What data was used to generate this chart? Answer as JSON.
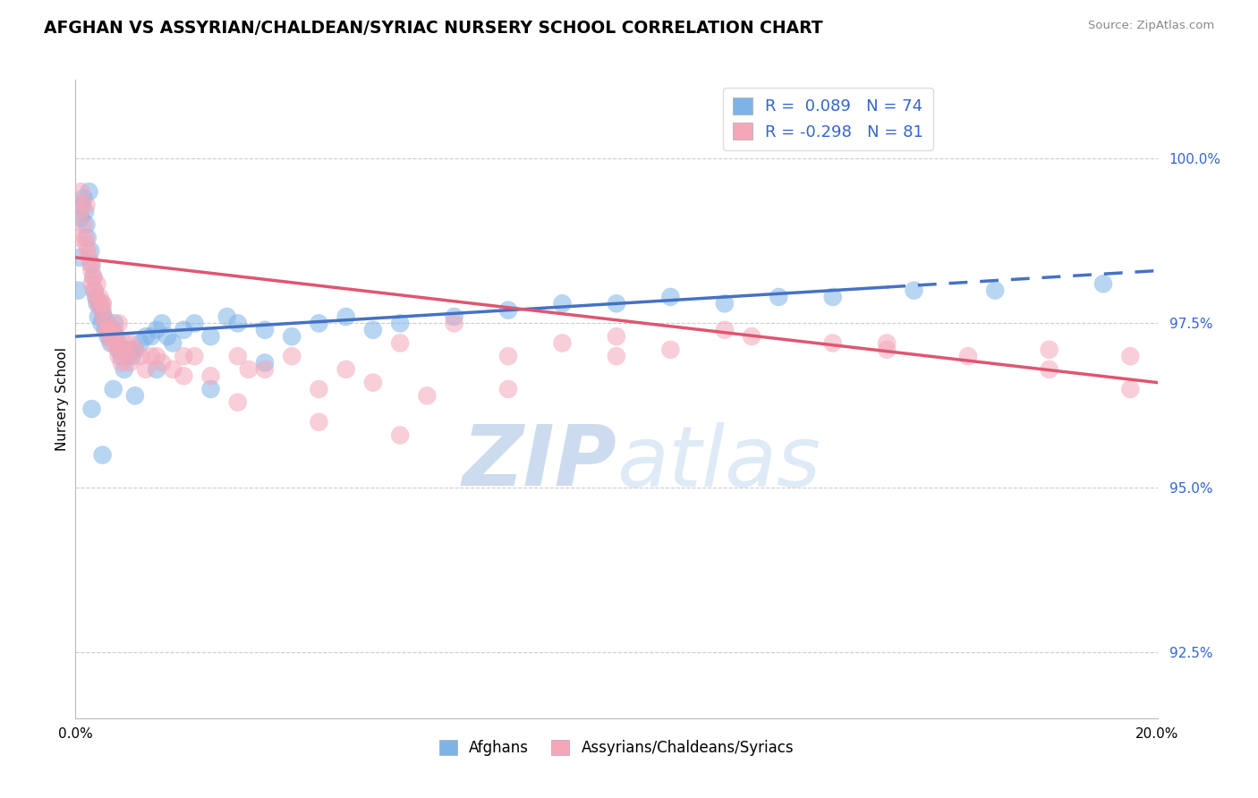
{
  "title": "AFGHAN VS ASSYRIAN/CHALDEAN/SYRIAC NURSERY SCHOOL CORRELATION CHART",
  "source": "Source: ZipAtlas.com",
  "ylabel": "Nursery School",
  "xlim": [
    0.0,
    20.0
  ],
  "ylim": [
    91.5,
    101.2
  ],
  "yticks": [
    92.5,
    95.0,
    97.5,
    100.0
  ],
  "ytick_labels": [
    "92.5%",
    "95.0%",
    "97.5%",
    "100.0%"
  ],
  "blue_color": "#7EB3E8",
  "pink_color": "#F4A7B9",
  "trend_blue": "#4472C4",
  "trend_pink": "#E05570",
  "watermark": "ZIPatlas",
  "watermark_color": "#C8D8F0",
  "legend_text_color": "#3366CC",
  "blue_x": [
    0.05,
    0.08,
    0.1,
    0.12,
    0.15,
    0.18,
    0.2,
    0.22,
    0.25,
    0.28,
    0.3,
    0.33,
    0.35,
    0.38,
    0.4,
    0.42,
    0.45,
    0.48,
    0.5,
    0.52,
    0.55,
    0.58,
    0.6,
    0.62,
    0.65,
    0.68,
    0.7,
    0.72,
    0.75,
    0.78,
    0.8,
    0.85,
    0.9,
    0.95,
    1.0,
    1.05,
    1.1,
    1.2,
    1.3,
    1.4,
    1.5,
    1.6,
    1.7,
    1.8,
    2.0,
    2.2,
    2.5,
    2.8,
    3.0,
    3.5,
    4.0,
    4.5,
    5.0,
    5.5,
    6.0,
    7.0,
    8.0,
    9.0,
    10.0,
    11.0,
    12.0,
    13.0,
    14.0,
    15.5,
    17.0,
    19.0,
    0.3,
    0.5,
    0.7,
    0.9,
    1.1,
    1.5,
    2.5,
    3.5
  ],
  "blue_y": [
    98.0,
    98.5,
    99.1,
    99.3,
    99.4,
    99.2,
    99.0,
    98.8,
    99.5,
    98.6,
    98.4,
    98.2,
    98.0,
    97.9,
    97.8,
    97.6,
    97.8,
    97.5,
    97.7,
    97.6,
    97.4,
    97.5,
    97.3,
    97.4,
    97.2,
    97.4,
    97.3,
    97.5,
    97.3,
    97.2,
    97.1,
    97.0,
    97.1,
    97.0,
    97.1,
    97.0,
    97.1,
    97.2,
    97.3,
    97.3,
    97.4,
    97.5,
    97.3,
    97.2,
    97.4,
    97.5,
    97.3,
    97.6,
    97.5,
    97.4,
    97.3,
    97.5,
    97.6,
    97.4,
    97.5,
    97.6,
    97.7,
    97.8,
    97.8,
    97.9,
    97.8,
    97.9,
    97.9,
    98.0,
    98.0,
    98.1,
    96.2,
    95.5,
    96.5,
    96.8,
    96.4,
    96.8,
    96.5,
    96.9
  ],
  "pink_x": [
    0.05,
    0.08,
    0.1,
    0.12,
    0.15,
    0.18,
    0.2,
    0.22,
    0.25,
    0.28,
    0.3,
    0.33,
    0.35,
    0.38,
    0.4,
    0.42,
    0.45,
    0.48,
    0.5,
    0.52,
    0.55,
    0.58,
    0.6,
    0.63,
    0.65,
    0.68,
    0.7,
    0.72,
    0.75,
    0.78,
    0.8,
    0.85,
    0.9,
    0.95,
    1.0,
    1.1,
    1.2,
    1.4,
    1.6,
    1.8,
    2.0,
    2.5,
    3.0,
    3.5,
    4.0,
    4.5,
    5.0,
    5.5,
    6.0,
    6.5,
    7.0,
    8.0,
    9.0,
    10.0,
    11.0,
    12.0,
    14.0,
    15.0,
    16.5,
    18.0,
    19.5,
    0.2,
    0.5,
    0.8,
    1.0,
    1.5,
    2.0,
    3.0,
    4.5,
    6.0,
    8.0,
    10.0,
    12.5,
    15.0,
    18.0,
    19.5,
    0.3,
    0.9,
    1.3,
    2.2,
    3.2
  ],
  "pink_y": [
    98.8,
    99.2,
    99.5,
    99.3,
    99.0,
    98.8,
    98.7,
    98.6,
    98.5,
    98.4,
    98.3,
    98.2,
    98.0,
    97.9,
    98.1,
    97.8,
    97.9,
    97.7,
    97.8,
    97.6,
    97.5,
    97.4,
    97.4,
    97.3,
    97.4,
    97.2,
    97.3,
    97.4,
    97.2,
    97.1,
    97.0,
    96.9,
    97.1,
    97.0,
    96.9,
    97.1,
    97.0,
    97.0,
    96.9,
    96.8,
    97.0,
    96.7,
    97.0,
    96.8,
    97.0,
    96.5,
    96.8,
    96.6,
    97.2,
    96.4,
    97.5,
    97.0,
    97.2,
    97.3,
    97.1,
    97.4,
    97.2,
    97.1,
    97.0,
    96.8,
    97.0,
    99.3,
    97.8,
    97.5,
    97.2,
    97.0,
    96.7,
    96.3,
    96.0,
    95.8,
    96.5,
    97.0,
    97.3,
    97.2,
    97.1,
    96.5,
    98.1,
    97.2,
    96.8,
    97.0,
    96.8
  ],
  "blue_trend_x0": 0.0,
  "blue_trend_x1": 20.0,
  "blue_trend_y0": 97.3,
  "blue_trend_y1": 98.3,
  "blue_solid_end": 15.0,
  "pink_trend_x0": 0.0,
  "pink_trend_x1": 20.0,
  "pink_trend_y0": 98.5,
  "pink_trend_y1": 96.6
}
